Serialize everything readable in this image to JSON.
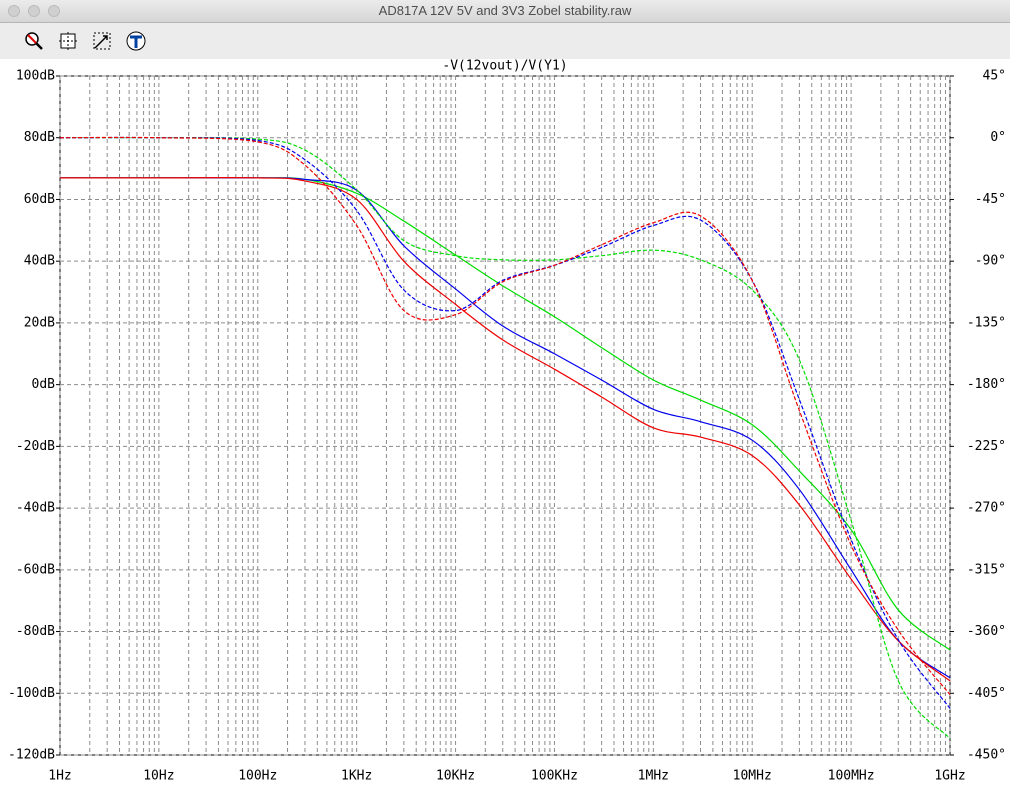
{
  "window": {
    "title": "AD817A 12V 5V and 3V3 Zobel stability.raw"
  },
  "chart_data": {
    "type": "line",
    "title": "-V(12vout)/V(Y1)",
    "title_color": "#00e000",
    "xscale": "log",
    "grid": true,
    "x": [
      1,
      10,
      100,
      300,
      1000,
      3000,
      10000,
      30000,
      100000,
      300000,
      1000000,
      3000000,
      10000000,
      30000000,
      100000000,
      300000000,
      1000000000
    ],
    "xlim": [
      1,
      1000000000
    ],
    "xticks": [
      {
        "value": 1,
        "label": "1Hz"
      },
      {
        "value": 10,
        "label": "10Hz"
      },
      {
        "value": 100,
        "label": "100Hz"
      },
      {
        "value": 1000,
        "label": "1KHz"
      },
      {
        "value": 10000,
        "label": "10KHz"
      },
      {
        "value": 100000,
        "label": "100KHz"
      },
      {
        "value": 1000000,
        "label": "1MHz"
      },
      {
        "value": 10000000,
        "label": "10MHz"
      },
      {
        "value": 100000000,
        "label": "100MHz"
      },
      {
        "value": 1000000000,
        "label": "1GHz"
      }
    ],
    "ylim": [
      -120,
      100
    ],
    "yticks": [
      {
        "value": 100,
        "label": "100dB"
      },
      {
        "value": 80,
        "label": "80dB"
      },
      {
        "value": 60,
        "label": "60dB"
      },
      {
        "value": 40,
        "label": "40dB"
      },
      {
        "value": 20,
        "label": "20dB"
      },
      {
        "value": 0,
        "label": "0dB"
      },
      {
        "value": -20,
        "label": "-20dB"
      },
      {
        "value": -40,
        "label": "-40dB"
      },
      {
        "value": -60,
        "label": "-60dB"
      },
      {
        "value": -80,
        "label": "-80dB"
      },
      {
        "value": -100,
        "label": "-100dB"
      },
      {
        "value": -120,
        "label": "-120dB"
      }
    ],
    "y2lim": [
      -450,
      45
    ],
    "y2ticks": [
      {
        "value": 45,
        "label": "45°"
      },
      {
        "value": 0,
        "label": "0°"
      },
      {
        "value": -45,
        "label": "-45°"
      },
      {
        "value": -90,
        "label": "-90°"
      },
      {
        "value": -135,
        "label": "-135°"
      },
      {
        "value": -180,
        "label": "-180°"
      },
      {
        "value": -225,
        "label": "-225°"
      },
      {
        "value": -270,
        "label": "-270°"
      },
      {
        "value": -315,
        "label": "-315°"
      },
      {
        "value": -360,
        "label": "-360°"
      },
      {
        "value": -405,
        "label": "-405°"
      },
      {
        "value": -450,
        "label": "-450°"
      }
    ],
    "series": [
      {
        "color": "#00dd00",
        "style": "solid",
        "values": [
          67,
          67,
          67,
          66.5,
          62,
          53,
          42,
          32,
          22,
          12,
          1.5,
          -5,
          -13,
          -28,
          -47,
          -73,
          -86
        ]
      },
      {
        "color": "#0000ee",
        "style": "solid",
        "values": [
          67,
          67,
          67,
          66.5,
          63,
          45,
          31,
          19,
          10,
          1.5,
          -8,
          -12,
          -18,
          -34,
          -60,
          -83,
          -95
        ]
      },
      {
        "color": "#ee0000",
        "style": "solid",
        "values": [
          67,
          67,
          67,
          66,
          60,
          40,
          26,
          14.5,
          5,
          -4,
          -14,
          -17,
          -23,
          -39,
          -63,
          -83,
          -96
        ]
      },
      {
        "color": "#00dd00",
        "style": "dashed",
        "axis": "y2",
        "values": [
          0,
          0,
          -1,
          -9,
          -38,
          -75,
          -86,
          -89,
          -89,
          -86,
          -82,
          -89,
          -111,
          -162,
          -279,
          -396,
          -438
        ]
      },
      {
        "color": "#0000ee",
        "style": "dashed",
        "axis": "y2",
        "values": [
          0,
          0,
          -2,
          -16,
          -53,
          -111,
          -126,
          -104,
          -93,
          -80,
          -64,
          -60,
          -104,
          -191,
          -293,
          -366,
          -416
        ]
      },
      {
        "color": "#ee0000",
        "style": "dashed",
        "axis": "y2",
        "values": [
          0,
          0,
          -3,
          -20,
          -64,
          -126,
          -129,
          -105,
          -93,
          -78,
          -62,
          -57,
          -104,
          -199,
          -297,
          -359,
          -406
        ]
      }
    ]
  }
}
